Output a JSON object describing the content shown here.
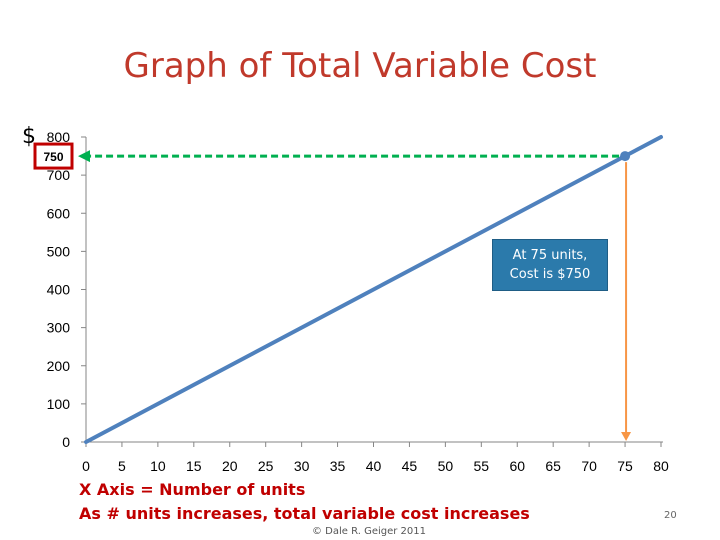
{
  "slide": {
    "title": "Graph of Total Variable Cost",
    "currency_symbol": "$",
    "callout_line1": "At 75 units,",
    "callout_line2": "Cost is $750",
    "note_x_axis": "X Axis = Number of units",
    "note_increase": "As # units increases, total variable cost increases",
    "copyright": "© Dale R. Geiger 2011",
    "page_number": "20"
  },
  "chart_data": {
    "type": "line",
    "title": "Graph of Total Variable Cost",
    "xlabel": "",
    "ylabel": "",
    "x_ticks": [
      0,
      5,
      10,
      15,
      20,
      25,
      30,
      35,
      40,
      45,
      50,
      55,
      60,
      65,
      70,
      75,
      80
    ],
    "y_ticks": [
      0,
      100,
      200,
      300,
      400,
      500,
      600,
      700,
      800
    ],
    "xlim": [
      0,
      80
    ],
    "ylim": [
      0,
      800
    ],
    "grid": false,
    "series": [
      {
        "name": "",
        "x": [
          0,
          80
        ],
        "y": [
          0,
          800
        ],
        "color": "#4f81bd"
      }
    ],
    "highlight_point": {
      "x": 75,
      "y": 750,
      "label": "750"
    },
    "colors": {
      "line": "#4f81bd",
      "horizontal_guide": "#00b050",
      "vertical_guide": "#f79646",
      "label_box": "#c00000",
      "title": "#c0392b",
      "notes": "#c00000",
      "callout_bg": "#2b7aab"
    }
  }
}
